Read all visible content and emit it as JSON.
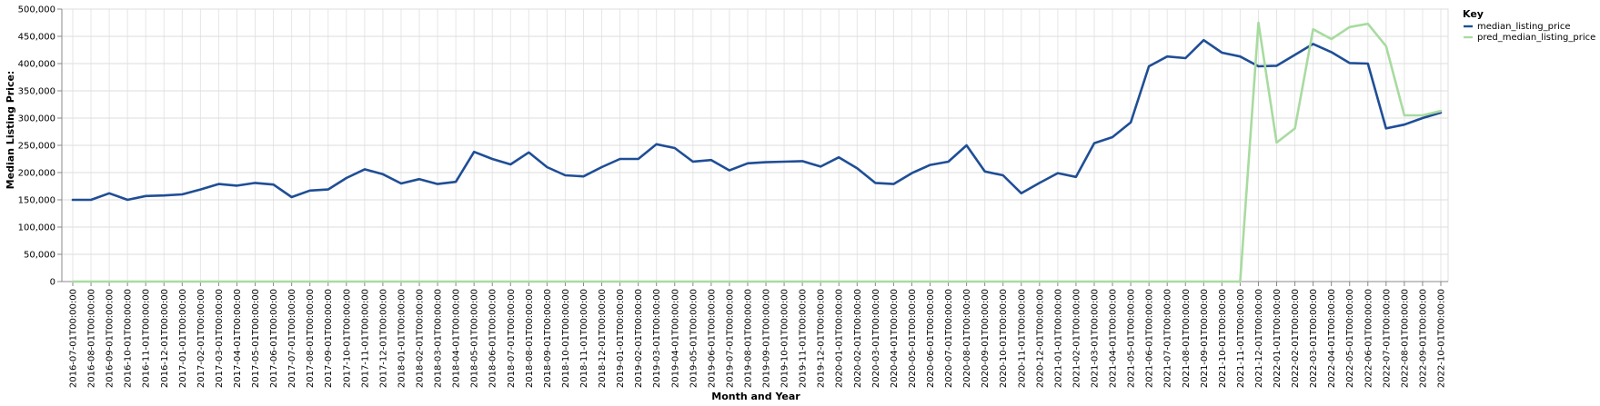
{
  "chart_data": {
    "type": "line",
    "xlabel": "Month and Year",
    "ylabel": "Median Listing Price:",
    "ylim": [
      0,
      500000
    ],
    "yticks": [
      0,
      50000,
      100000,
      150000,
      200000,
      250000,
      300000,
      350000,
      400000,
      450000,
      500000
    ],
    "grid": true,
    "legend": {
      "title": "Key",
      "position": "right"
    },
    "x": [
      "2016-07-01T00:00:00",
      "2016-08-01T00:00:00",
      "2016-09-01T00:00:00",
      "2016-10-01T00:00:00",
      "2016-11-01T00:00:00",
      "2016-12-01T00:00:00",
      "2017-01-01T00:00:00",
      "2017-02-01T00:00:00",
      "2017-03-01T00:00:00",
      "2017-04-01T00:00:00",
      "2017-05-01T00:00:00",
      "2017-06-01T00:00:00",
      "2017-07-01T00:00:00",
      "2017-08-01T00:00:00",
      "2017-09-01T00:00:00",
      "2017-10-01T00:00:00",
      "2017-11-01T00:00:00",
      "2017-12-01T00:00:00",
      "2018-01-01T00:00:00",
      "2018-02-01T00:00:00",
      "2018-03-01T00:00:00",
      "2018-04-01T00:00:00",
      "2018-05-01T00:00:00",
      "2018-06-01T00:00:00",
      "2018-07-01T00:00:00",
      "2018-08-01T00:00:00",
      "2018-09-01T00:00:00",
      "2018-10-01T00:00:00",
      "2018-11-01T00:00:00",
      "2018-12-01T00:00:00",
      "2019-01-01T00:00:00",
      "2019-02-01T00:00:00",
      "2019-03-01T00:00:00",
      "2019-04-01T00:00:00",
      "2019-05-01T00:00:00",
      "2019-06-01T00:00:00",
      "2019-07-01T00:00:00",
      "2019-08-01T00:00:00",
      "2019-09-01T00:00:00",
      "2019-10-01T00:00:00",
      "2019-11-01T00:00:00",
      "2019-12-01T00:00:00",
      "2020-01-01T00:00:00",
      "2020-02-01T00:00:00",
      "2020-03-01T00:00:00",
      "2020-04-01T00:00:00",
      "2020-05-01T00:00:00",
      "2020-06-01T00:00:00",
      "2020-07-01T00:00:00",
      "2020-08-01T00:00:00",
      "2020-09-01T00:00:00",
      "2020-10-01T00:00:00",
      "2020-11-01T00:00:00",
      "2020-12-01T00:00:00",
      "2021-01-01T00:00:00",
      "2021-02-01T00:00:00",
      "2021-03-01T00:00:00",
      "2021-04-01T00:00:00",
      "2021-05-01T00:00:00",
      "2021-06-01T00:00:00",
      "2021-07-01T00:00:00",
      "2021-08-01T00:00:00",
      "2021-09-01T00:00:00",
      "2021-10-01T00:00:00",
      "2021-11-01T00:00:00",
      "2021-12-01T00:00:00",
      "2022-01-01T00:00:00",
      "2022-02-01T00:00:00",
      "2022-03-01T00:00:00",
      "2022-04-01T00:00:00",
      "2022-05-01T00:00:00",
      "2022-06-01T00:00:00",
      "2022-07-01T00:00:00",
      "2022-08-01T00:00:00",
      "2022-09-01T00:00:00",
      "2022-10-01T00:00:00"
    ],
    "series": [
      {
        "name": "median_listing_price",
        "color": "#1f4e96",
        "values": [
          150000,
          150000,
          162000,
          150000,
          157000,
          158000,
          160000,
          169000,
          179000,
          176000,
          181000,
          178000,
          155000,
          167000,
          169000,
          190000,
          206000,
          197000,
          180000,
          188000,
          179000,
          183000,
          238000,
          225000,
          215000,
          237000,
          210000,
          195000,
          193000,
          210000,
          225000,
          225000,
          252000,
          245000,
          220000,
          223000,
          204000,
          217000,
          219000,
          220000,
          221000,
          211000,
          228000,
          208000,
          181000,
          179000,
          199000,
          214000,
          220000,
          250000,
          202000,
          195000,
          162000,
          181000,
          199000,
          192000,
          254000,
          265000,
          292000,
          395000,
          413000,
          410000,
          443000,
          420000,
          413000,
          395000,
          396000,
          416000,
          436000,
          421000,
          401000,
          400000,
          281000,
          288000,
          300000,
          310000
        ]
      },
      {
        "name": "pred_median_listing_price",
        "color": "#a8dba0",
        "values": [
          0,
          0,
          0,
          0,
          0,
          0,
          0,
          0,
          0,
          0,
          0,
          0,
          0,
          0,
          0,
          0,
          0,
          0,
          0,
          0,
          0,
          0,
          0,
          0,
          0,
          0,
          0,
          0,
          0,
          0,
          0,
          0,
          0,
          0,
          0,
          0,
          0,
          0,
          0,
          0,
          0,
          0,
          0,
          0,
          0,
          0,
          0,
          0,
          0,
          0,
          0,
          0,
          0,
          0,
          0,
          0,
          0,
          0,
          0,
          0,
          0,
          0,
          0,
          0,
          0,
          475000,
          255000,
          281000,
          463000,
          445000,
          467000,
          473000,
          432000,
          305000,
          305000,
          313000
        ]
      }
    ]
  }
}
